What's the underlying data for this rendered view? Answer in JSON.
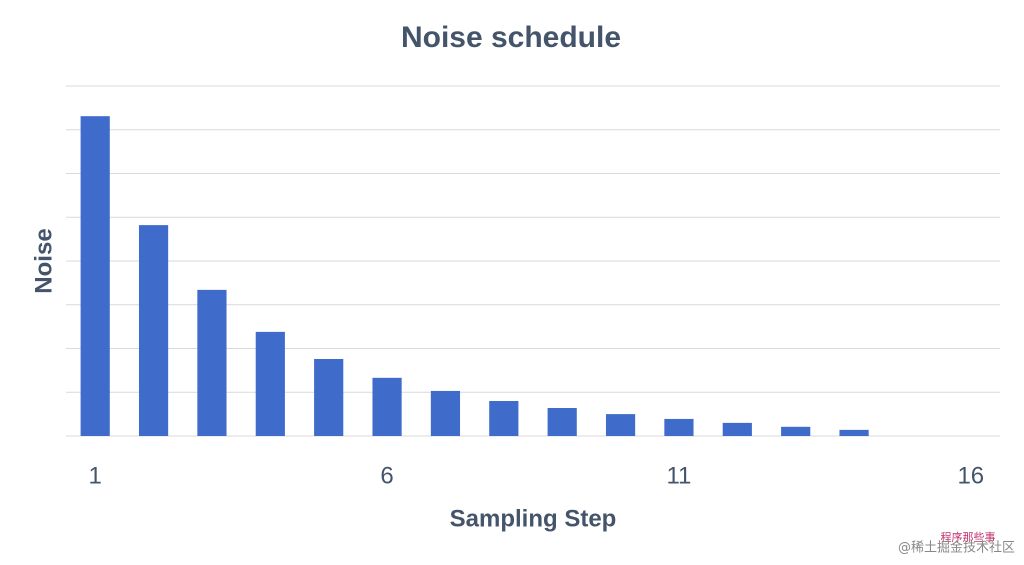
{
  "chart_data": {
    "type": "bar",
    "title": "Noise schedule",
    "x_label": "Sampling Step",
    "y_label": "Noise",
    "x": [
      1,
      2,
      3,
      4,
      5,
      6,
      7,
      8,
      9,
      10,
      11,
      12,
      13,
      14
    ],
    "values": [
      7.31,
      4.82,
      3.34,
      2.38,
      1.76,
      1.33,
      1.03,
      0.8,
      0.64,
      0.5,
      0.39,
      0.3,
      0.21,
      0.14
    ],
    "color": "#3f6bcb",
    "xlim": [
      0.5,
      16.5
    ],
    "xticks": [
      1,
      6,
      11,
      16
    ],
    "ylim": [
      0,
      8
    ],
    "yticks": [
      0,
      1,
      2,
      3,
      4,
      5,
      6,
      7,
      8
    ],
    "show_ytick_labels": false,
    "grid": true
  },
  "watermark": {
    "top": "程序那些事",
    "bottom": "@稀土掘金技术社区"
  }
}
